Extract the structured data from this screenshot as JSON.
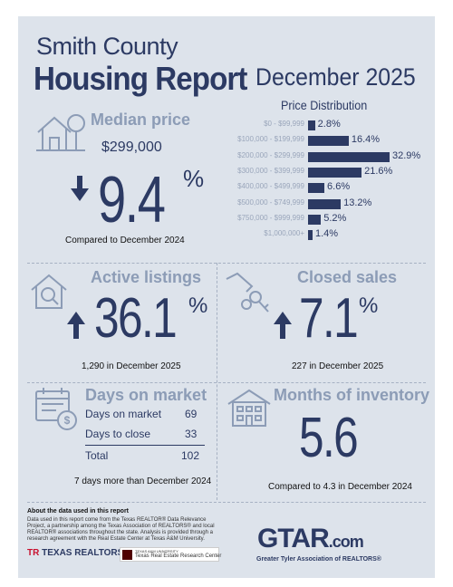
{
  "header": {
    "county": "Smith County",
    "title": "Housing Report",
    "month": "December 2025"
  },
  "median_price": {
    "label": "Median price",
    "value": "$299,000",
    "change": "9.4",
    "sign": "%",
    "direction": "down",
    "note": "Compared to December 2024"
  },
  "price_distribution": {
    "title": "Price Distribution",
    "rows": [
      {
        "range": "$0 - $99,999",
        "value": 2.8,
        "label": "2.8%"
      },
      {
        "range": "$100,000 - $199,999",
        "value": 16.4,
        "label": "16.4%"
      },
      {
        "range": "$200,000 - $299,999",
        "value": 32.9,
        "label": "32.9%"
      },
      {
        "range": "$300,000 - $399,999",
        "value": 21.6,
        "label": "21.6%"
      },
      {
        "range": "$400,000 - $499,999",
        "value": 6.6,
        "label": "6.6%"
      },
      {
        "range": "$500,000 - $749,999",
        "value": 13.2,
        "label": "13.2%"
      },
      {
        "range": "$750,000 - $999,999",
        "value": 5.2,
        "label": "5.2%"
      },
      {
        "range": "$1,000,000+",
        "value": 1.4,
        "label": "1.4%"
      }
    ]
  },
  "active_listings": {
    "label": "Active listings",
    "change": "36.1",
    "sign": "%",
    "direction": "up",
    "note": "1,290 in December 2025"
  },
  "closed_sales": {
    "label": "Closed sales",
    "change": "7.1",
    "sign": "%",
    "direction": "up",
    "note": "227 in December 2025"
  },
  "days_on_market": {
    "label": "Days on market",
    "rows": [
      {
        "name": "Days on market",
        "value": "69"
      },
      {
        "name": "Days to close",
        "value": "33"
      }
    ],
    "total_label": "Total",
    "total_value": "102",
    "note": "7 days more than December 2024"
  },
  "months_inventory": {
    "label": "Months of inventory",
    "value": "5.6",
    "note": "Compared to 4.3 in December 2024"
  },
  "footer": {
    "about_title": "About the data used in this report",
    "about_text": "Data used in this report come from the Texas REALTOR® Data Relevance Project, a partnership among the Texas Association of REALTORS® and local REALTOR® associations throughout the state. Analysis is provided through a research agreement with the Real Estate Center at Texas A&M University.",
    "texas_realtors": "TEXAS REALTORS",
    "tamu_small": "TEXAS A&M UNIVERSITY",
    "tamu_name": "Texas Real Estate Research Center",
    "gtar_main": "GTAR",
    "gtar_dotcom": ".com",
    "gtar_sub": "Greater Tyler Association of REALTORS®"
  },
  "colors": {
    "navy": "#2c3a63",
    "steel": "#8c9cb6",
    "background": "#dde3eb",
    "accent_red": "#c8102e"
  },
  "icons": [
    "house-tree-icon",
    "house-search-icon",
    "hand-keys-icon",
    "calendar-money-icon",
    "apartment-building-icon",
    "arrow-down-icon",
    "arrow-up-icon"
  ]
}
